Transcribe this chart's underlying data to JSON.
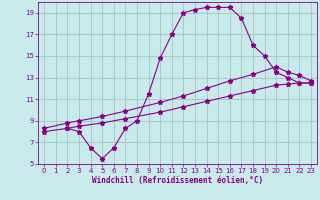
{
  "xlabel": "Windchill (Refroidissement éolien,°C)",
  "bg_color": "#c8eaea",
  "grid_color": "#a8c8c8",
  "line_color": "#880088",
  "xlim": [
    -0.5,
    23.5
  ],
  "ylim": [
    5,
    20
  ],
  "xticks": [
    0,
    1,
    2,
    3,
    4,
    5,
    6,
    7,
    8,
    9,
    10,
    11,
    12,
    13,
    14,
    15,
    16,
    17,
    18,
    19,
    20,
    21,
    22,
    23
  ],
  "yticks": [
    5,
    7,
    9,
    11,
    13,
    15,
    17,
    19
  ],
  "series": [
    {
      "x": [
        0,
        2,
        3,
        5,
        7,
        10,
        12,
        14,
        16,
        18,
        20,
        21,
        22,
        23
      ],
      "y": [
        8,
        8.3,
        8.5,
        8.8,
        9.2,
        9.8,
        10.3,
        10.8,
        11.3,
        11.8,
        12.3,
        12.4,
        12.5,
        12.5
      ]
    },
    {
      "x": [
        0,
        2,
        3,
        5,
        7,
        10,
        12,
        14,
        16,
        18,
        20,
        21,
        22,
        23
      ],
      "y": [
        8.3,
        8.8,
        9.0,
        9.4,
        9.9,
        10.7,
        11.3,
        12.0,
        12.7,
        13.3,
        14.0,
        13.5,
        13.2,
        12.7
      ]
    },
    {
      "x": [
        2,
        3,
        4,
        5,
        6,
        7,
        8,
        9,
        10,
        11,
        12,
        13,
        14,
        15,
        16,
        17,
        18,
        19,
        20,
        21,
        22,
        23
      ],
      "y": [
        8.3,
        8.0,
        6.5,
        5.5,
        6.5,
        8.3,
        9.0,
        11.5,
        14.8,
        17.0,
        19.0,
        19.3,
        19.5,
        19.5,
        19.5,
        18.5,
        16.0,
        15.0,
        13.5,
        13.0,
        12.5,
        12.5
      ]
    }
  ]
}
